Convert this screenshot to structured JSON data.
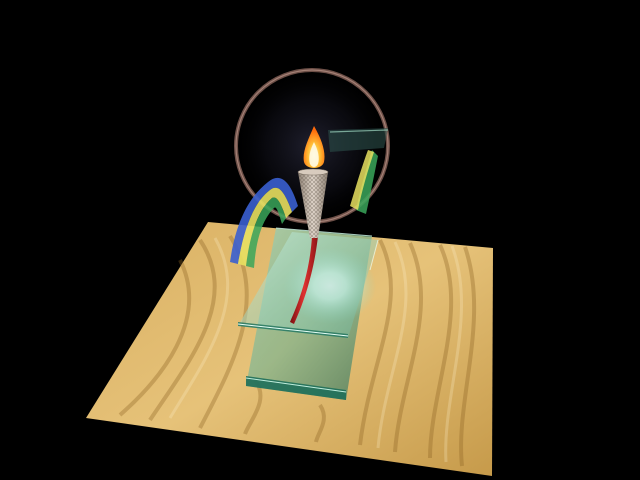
{
  "scene": {
    "background_color": "#000000",
    "objects": [
      "wood-board",
      "glass-plate-lower",
      "glass-plate-upper",
      "glow-light",
      "rainbow-ribbon",
      "ring-halo",
      "torch",
      "flame"
    ],
    "colors": {
      "wood_light": "#e8c47a",
      "wood_mid": "#d1a757",
      "wood_dark": "#b2873a",
      "glass_teal": "#6fb39a",
      "glass_edge": "#1f6f5a",
      "glow": "#ffffff",
      "ring": "#8a6a5e",
      "torch_stick": "#c41e1e",
      "torch_cone": "#c9bdb0",
      "flame_outer": "#ff8a1a",
      "flame_inner": "#fff2b0",
      "ribbon_blue": "#3a5fd0",
      "ribbon_yellow": "#e8e060",
      "ribbon_green": "#3aa65a"
    }
  }
}
